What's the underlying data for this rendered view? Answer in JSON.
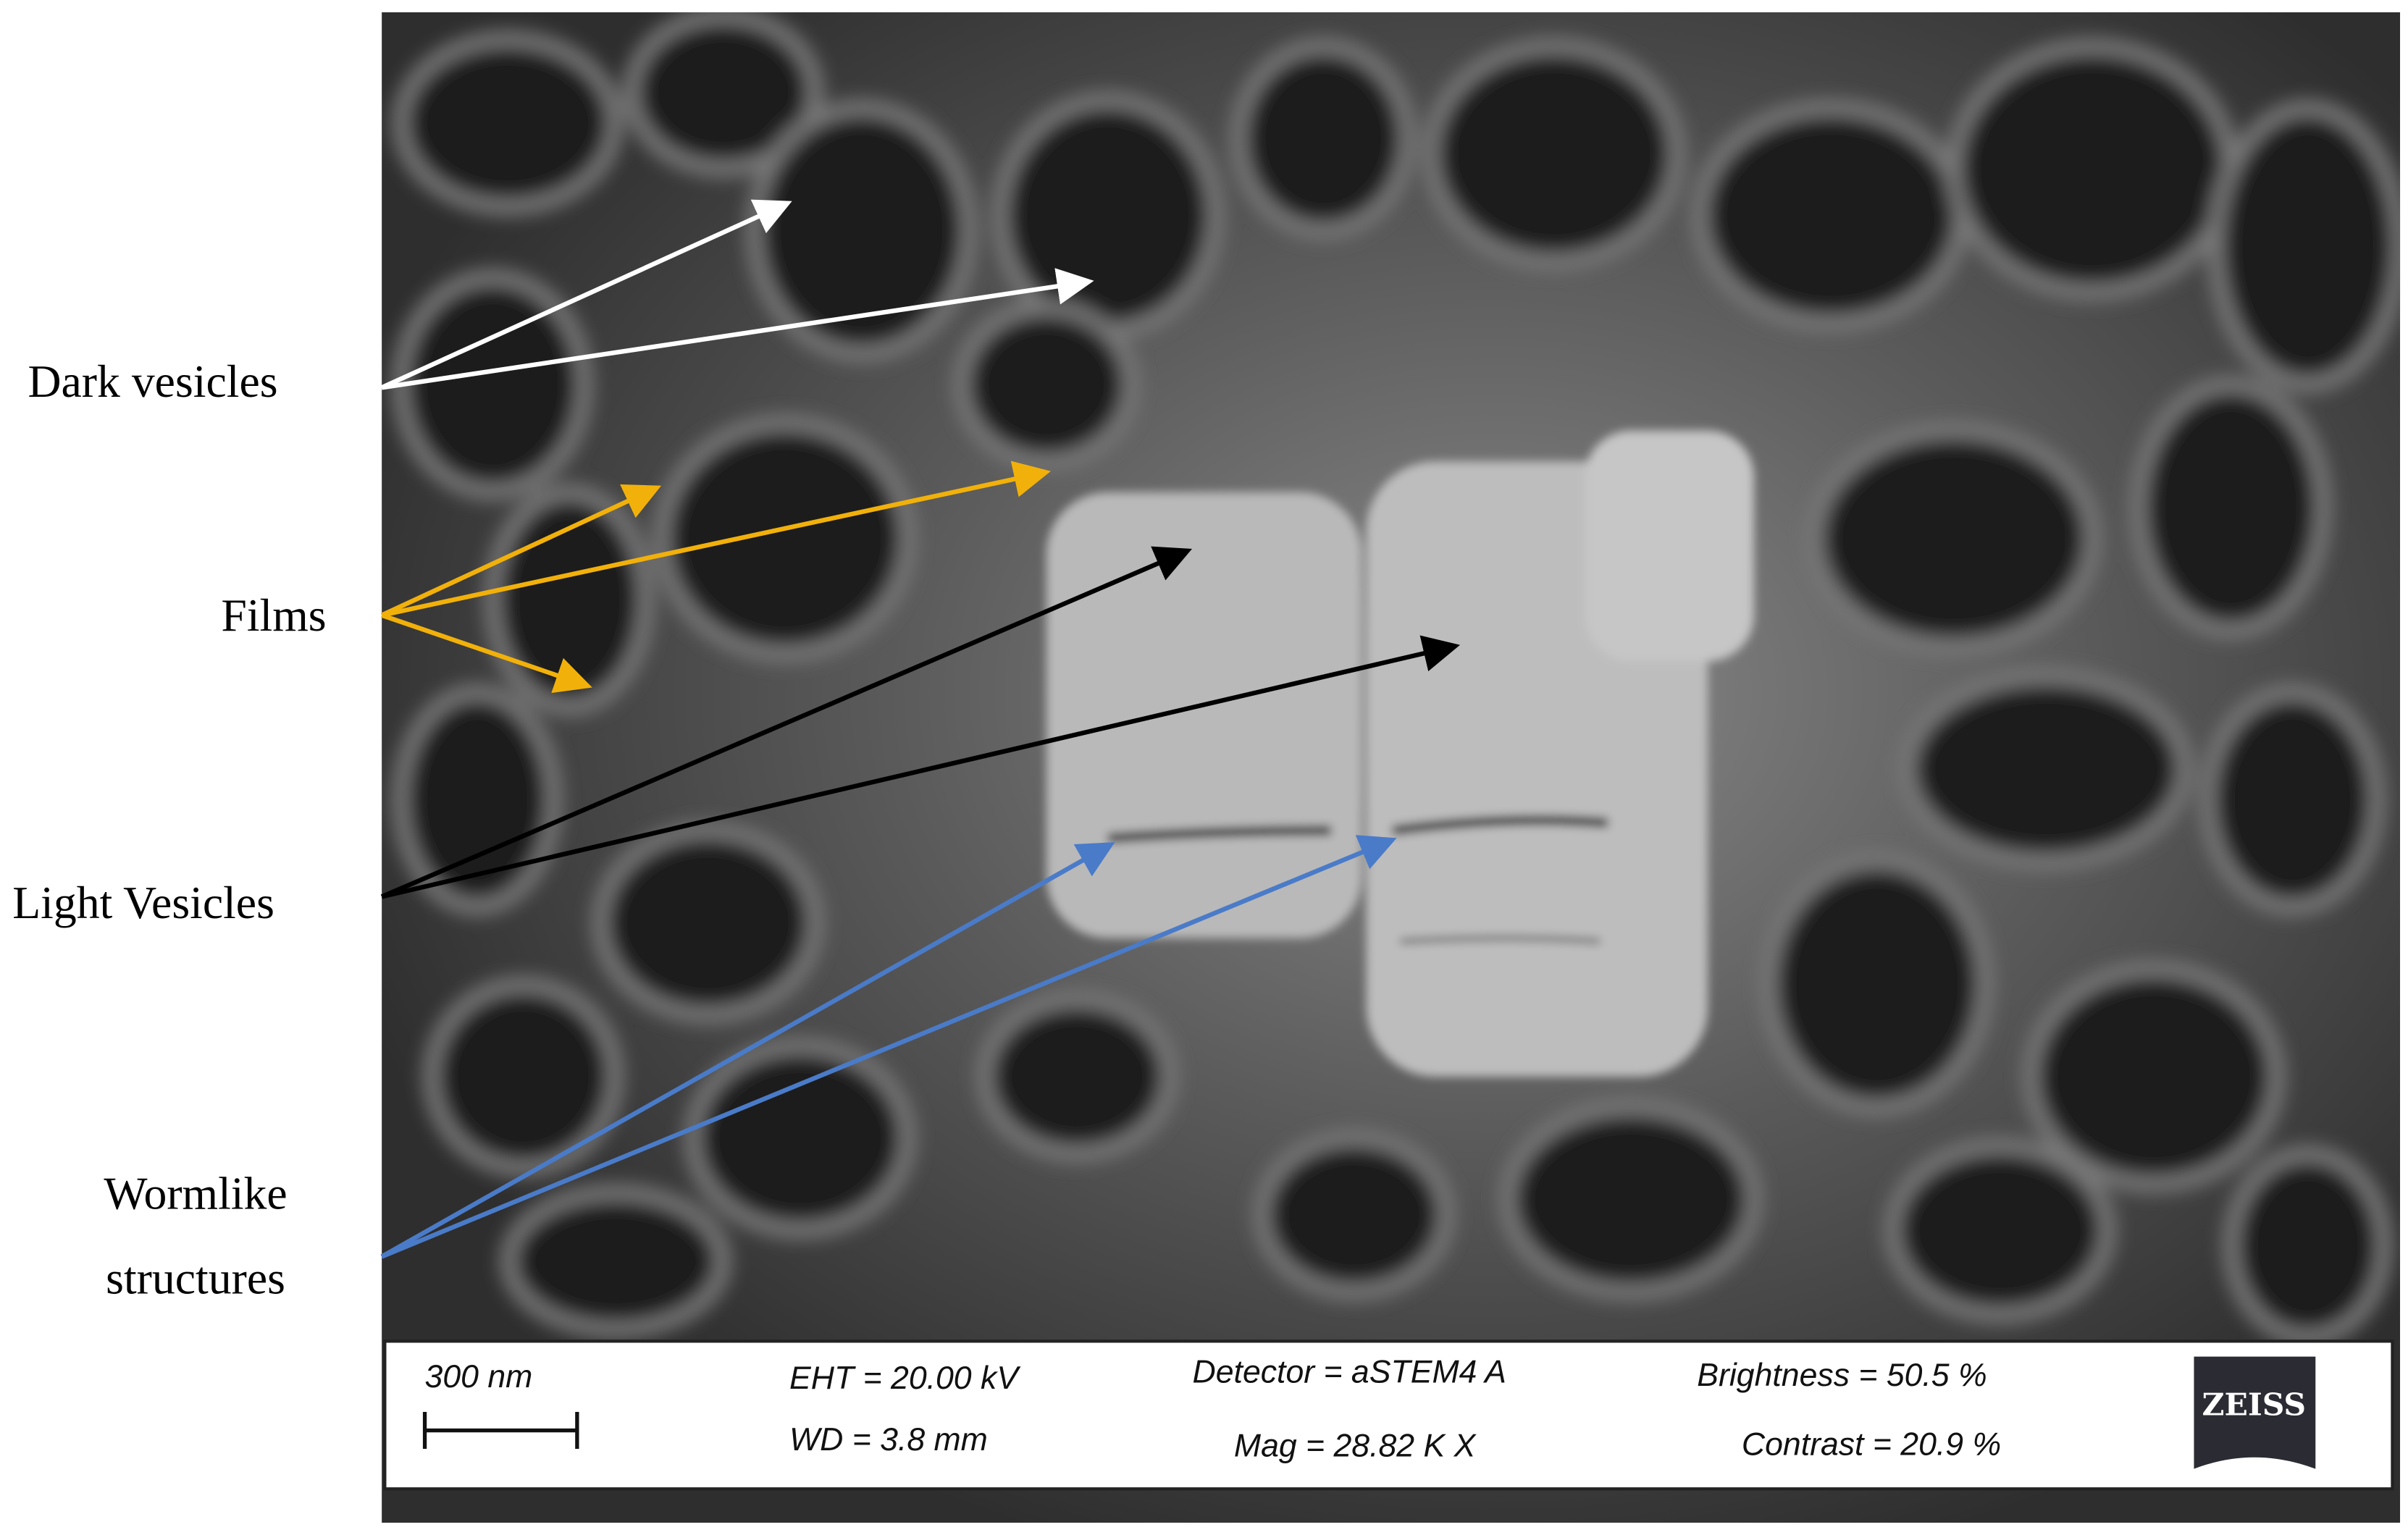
{
  "annotations": {
    "dark_vesicles": "Dark vesicles",
    "films": "Films",
    "light_vesicles": "Light Vesicles",
    "wormlike_structures": [
      "Wormlike",
      "structures"
    ]
  },
  "info_bar": {
    "scale": "300 nm",
    "eht": "EHT = 20.00 kV",
    "wd": "WD =  3.8 mm",
    "detector": "Detector = aSTEM4 A",
    "mag": "Mag =   28.82 K X",
    "brightness": "Brightness =  50.5 %",
    "contrast": "Contrast =  20.9 %",
    "logo": "ZEISS"
  }
}
